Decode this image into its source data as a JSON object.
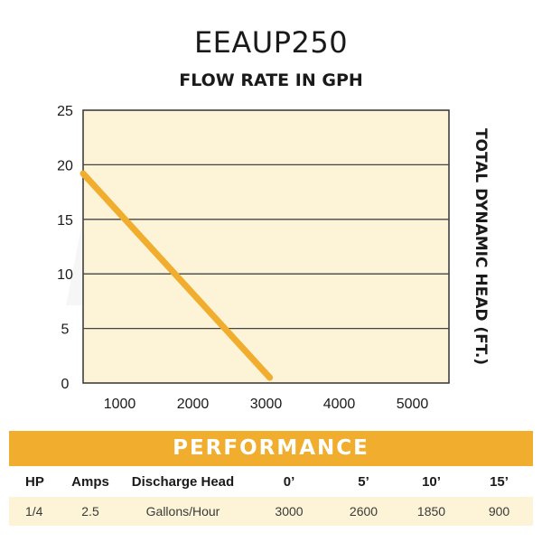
{
  "model": "EEAUP250",
  "colors": {
    "accent": "#f0ad2e",
    "plot_bg": "#fdf3d6",
    "table_row_bg": "#fdf3d6",
    "gridline": "#444444"
  },
  "chart_data": {
    "type": "line",
    "title": "FLOW RATE IN GPH",
    "xlabel": "",
    "ylabel": "TOTAL DYNAMIC HEAD (FT.)",
    "xlim": [
      500,
      5500
    ],
    "ylim": [
      0,
      25
    ],
    "x_ticks": [
      1000,
      2000,
      3000,
      4000,
      5000
    ],
    "y_ticks": [
      0,
      5,
      10,
      15,
      20,
      25
    ],
    "grid": true,
    "series": [
      {
        "name": "EEAUP250",
        "x": [
          500,
          3050
        ],
        "y": [
          19.2,
          0.5
        ]
      }
    ]
  },
  "performance": {
    "title": "PERFORMANCE",
    "headers": [
      "HP",
      "Amps",
      "Discharge Head",
      "0’",
      "5’",
      "10’",
      "15’"
    ],
    "rows": [
      [
        "1/4",
        "2.5",
        "Gallons/Hour",
        "3000",
        "2600",
        "1850",
        "900"
      ]
    ]
  }
}
